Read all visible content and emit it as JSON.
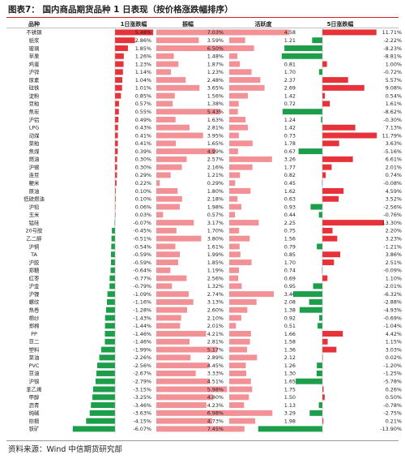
{
  "figure": {
    "title": "图表7： 国内商品期货品种 1 日表现（按价格涨跌幅排序）",
    "source": "资料来源：Wind 中信期货研究部"
  },
  "colors": {
    "up": "#e8323a",
    "up_light": "#f4a0a4",
    "down": "#1d9e4a",
    "amp_bar": "#f29296",
    "act_bar": "#f29296",
    "week_pos": "#e8323a",
    "week_neg": "#1d9e4a"
  },
  "chart_data": {
    "type": "table",
    "columns": [
      "品种",
      "1日涨跌幅",
      "振幅",
      "活跃度",
      "5日涨跌幅"
    ],
    "rows": [
      {
        "name": "不锈钢",
        "d1": "5.48%",
        "amp": "7.03%",
        "act": "4.58",
        "d5": "11.71%"
      },
      {
        "name": "纸浆",
        "d1": "2.86%",
        "amp": "3.59%",
        "act": "1.21",
        "d5": "-2.22%"
      },
      {
        "name": "玻璃",
        "d1": "1.85%",
        "amp": "6.50%",
        "act": "1.89",
        "d5": "-8.23%"
      },
      {
        "name": "苹果",
        "d1": "1.26%",
        "amp": "1.48%",
        "act": "0.62",
        "d5": "-8.81%"
      },
      {
        "name": "鸡蛋",
        "d1": "1.23%",
        "amp": "1.87%",
        "act": "0.81",
        "d5": "1.00%"
      },
      {
        "name": "沪锌",
        "d1": "1.14%",
        "amp": "1.23%",
        "act": "1.70",
        "d5": "-0.72%"
      },
      {
        "name": "尿素",
        "d1": "1.04%",
        "amp": "2.48%",
        "act": "2.37",
        "d5": "5.57%"
      },
      {
        "name": "硅铁",
        "d1": "1.01%",
        "amp": "3.65%",
        "act": "2.69",
        "d5": "9.08%"
      },
      {
        "name": "淀粉",
        "d1": "0.85%",
        "amp": "1.56%",
        "act": "1.42",
        "d5": "0.54%"
      },
      {
        "name": "豆粕",
        "d1": "0.57%",
        "amp": "1.38%",
        "act": "0.72",
        "d5": "1.61%"
      },
      {
        "name": "焦炭",
        "d1": "0.55%",
        "amp": "5.43%",
        "act": "0.66",
        "d5": "-8.62%"
      },
      {
        "name": "沪铝",
        "d1": "0.49%",
        "amp": "1.63%",
        "act": "1.24",
        "d5": "-0.30%"
      },
      {
        "name": "LPG",
        "d1": "0.43%",
        "amp": "2.81%",
        "act": "1.42",
        "d5": "7.13%"
      },
      {
        "name": "动煤",
        "d1": "0.41%",
        "amp": "3.95%",
        "act": "0.73",
        "d5": "11.79%"
      },
      {
        "name": "菜粕",
        "d1": "0.41%",
        "amp": "1.65%",
        "act": "1.78",
        "d5": "3.63%"
      },
      {
        "name": "焦煤",
        "d1": "0.39%",
        "amp": "4.99%",
        "act": "0.67",
        "d5": "-5.16%"
      },
      {
        "name": "燃油",
        "d1": "0.30%",
        "amp": "2.57%",
        "act": "3.26",
        "d5": "6.61%"
      },
      {
        "name": "沪锡",
        "d1": "0.30%",
        "amp": "2.16%",
        "act": "1.77",
        "d5": "2.01%"
      },
      {
        "name": "连豆",
        "d1": "0.29%",
        "amp": "1.21%",
        "act": "0.82",
        "d5": "0.74%"
      },
      {
        "name": "粳米",
        "d1": "0.22%",
        "amp": "0.29%",
        "act": "0.45",
        "d5": "-0.08%"
      },
      {
        "name": "原油",
        "d1": "0.10%",
        "amp": "1.80%",
        "act": "1.62",
        "d5": "4.59%"
      },
      {
        "name": "低硫燃油",
        "d1": "0.10%",
        "amp": "2.18%",
        "act": "0.63",
        "d5": "3.52%"
      },
      {
        "name": "沪铅",
        "d1": "0.06%",
        "amp": "1.98%",
        "act": "0.93",
        "d5": "-2.56%"
      },
      {
        "name": "玉米",
        "d1": "0.03%",
        "amp": "0.57%",
        "act": "0.44",
        "d5": "-0.76%"
      },
      {
        "name": "锰硅",
        "d1": "-0.07%",
        "amp": "3.17%",
        "act": "2.25",
        "d5": "13.30%"
      },
      {
        "name": "20号胶",
        "d1": "-0.45%",
        "amp": "1.70%",
        "act": "0.75",
        "d5": "2.20%"
      },
      {
        "name": "乙二醇",
        "d1": "-0.51%",
        "amp": "3.80%",
        "act": "1.56",
        "d5": "3.23%"
      },
      {
        "name": "沪铜",
        "d1": "-0.54%",
        "amp": "1.61%",
        "act": "0.79",
        "d5": "-1.21%"
      },
      {
        "name": "TA",
        "d1": "-0.59%",
        "amp": "1.99%",
        "act": "0.85",
        "d5": "3.86%"
      },
      {
        "name": "沪胶",
        "d1": "-0.59%",
        "amp": "1.85%",
        "act": "1.70",
        "d5": "2.51%"
      },
      {
        "name": "郑糖",
        "d1": "-0.64%",
        "amp": "1.19%",
        "act": "0.74",
        "d5": "-0.09%"
      },
      {
        "name": "红枣",
        "d1": "-0.77%",
        "amp": "2.56%",
        "act": "0.69",
        "d5": "1.10%"
      },
      {
        "name": "沪金",
        "d1": "-0.79%",
        "amp": "1.32%",
        "act": "0.95",
        "d5": "-2.01%"
      },
      {
        "name": "沪镍",
        "d1": "-1.09%",
        "amp": "2.74%",
        "act": "3.40",
        "d5": "-6.32%"
      },
      {
        "name": "螺纹",
        "d1": "-1.16%",
        "amp": "3.13%",
        "act": "2.08",
        "d5": "-2.88%"
      },
      {
        "name": "热卷",
        "d1": "-1.28%",
        "amp": "2.60%",
        "act": "1.38",
        "d5": "-4.93%"
      },
      {
        "name": "棉纱",
        "d1": "-1.43%",
        "amp": "2.10%",
        "act": "0.92",
        "d5": "-0.69%"
      },
      {
        "name": "郑棉",
        "d1": "-1.44%",
        "amp": "2.01%",
        "act": "0.51",
        "d5": "-1.04%"
      },
      {
        "name": "PP",
        "d1": "-1.46%",
        "amp": "4.21%",
        "act": "1.66",
        "d5": "4.42%"
      },
      {
        "name": "豆二",
        "d1": "-1.46%",
        "amp": "2.81%",
        "act": "1.58",
        "d5": "1.15%"
      },
      {
        "name": "塑料",
        "d1": "-1.99%",
        "amp": "5.17%",
        "act": "1.36",
        "d5": "3.03%"
      },
      {
        "name": "菜油",
        "d1": "-2.26%",
        "amp": "2.89%",
        "act": "2.12",
        "d5": "0.02%"
      },
      {
        "name": "PVC",
        "d1": "-2.56%",
        "amp": "4.45%",
        "act": "1.26",
        "d5": "-1.20%"
      },
      {
        "name": "豆油",
        "d1": "-2.67%",
        "amp": "3.33%",
        "act": "1.30",
        "d5": "-1.25%"
      },
      {
        "name": "沪银",
        "d1": "-2.79%",
        "amp": "4.51%",
        "act": "1.65",
        "d5": "-5.78%"
      },
      {
        "name": "苯乙烯",
        "d1": "-3.15%",
        "amp": "5.98%",
        "act": "1.75",
        "d5": "0.26%"
      },
      {
        "name": "甲醇",
        "d1": "-3.25%",
        "amp": "4.80%",
        "act": "1.50",
        "d5": "0.50%"
      },
      {
        "name": "沥青",
        "d1": "-3.46%",
        "amp": "4.23%",
        "act": "1.13",
        "d5": "-0.78%"
      },
      {
        "name": "纯碱",
        "d1": "-3.63%",
        "amp": "6.98%",
        "act": "3.29",
        "d5": "-2.75%"
      },
      {
        "name": "棕榈",
        "d1": "-4.15%",
        "amp": "4.73%",
        "act": "1.98",
        "d5": "0.21%"
      },
      {
        "name": "铁矿",
        "d1": "-6.07%",
        "amp": "7.45%",
        "act": "0.93",
        "d5": "-13.90%"
      }
    ]
  }
}
